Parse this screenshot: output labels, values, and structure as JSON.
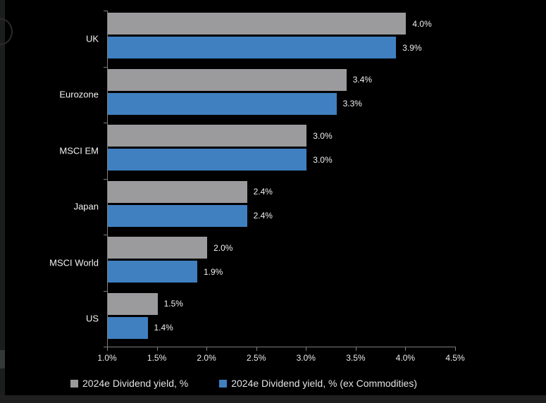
{
  "chart_data": {
    "type": "bar",
    "orientation": "horizontal",
    "title": "",
    "categories": [
      "UK",
      "Eurozone",
      "MSCI EM",
      "Japan",
      "MSCI World",
      "US"
    ],
    "series": [
      {
        "name": "2024e Dividend yield, %",
        "color": "#9b9b9d",
        "values": [
          4.0,
          3.4,
          3.0,
          2.4,
          2.0,
          1.5
        ],
        "data_labels": [
          "4.0%",
          "3.4%",
          "3.0%",
          "2.4%",
          "2.0%",
          "1.5%"
        ]
      },
      {
        "name": "2024e Dividend yield, % (ex Commodities)",
        "color": "#4080c0",
        "values": [
          3.9,
          3.3,
          3.0,
          2.4,
          1.9,
          1.4
        ],
        "data_labels": [
          "3.9%",
          "3.3%",
          "3.0%",
          "2.4%",
          "1.9%",
          "1.4%"
        ]
      }
    ],
    "x_axis": {
      "min": 1.0,
      "max": 4.5,
      "tick_step": 0.5,
      "tick_values": [
        1.0,
        1.5,
        2.0,
        2.5,
        3.0,
        3.5,
        4.0,
        4.5
      ],
      "tick_labels": [
        "1.0%",
        "1.5%",
        "2.0%",
        "2.5%",
        "3.0%",
        "3.5%",
        "4.0%",
        "4.5%"
      ]
    },
    "grid": false,
    "legend_position": "bottom",
    "background_color": "#000000",
    "text_color": "#efefef",
    "axis_color": "#7d7d7d"
  }
}
